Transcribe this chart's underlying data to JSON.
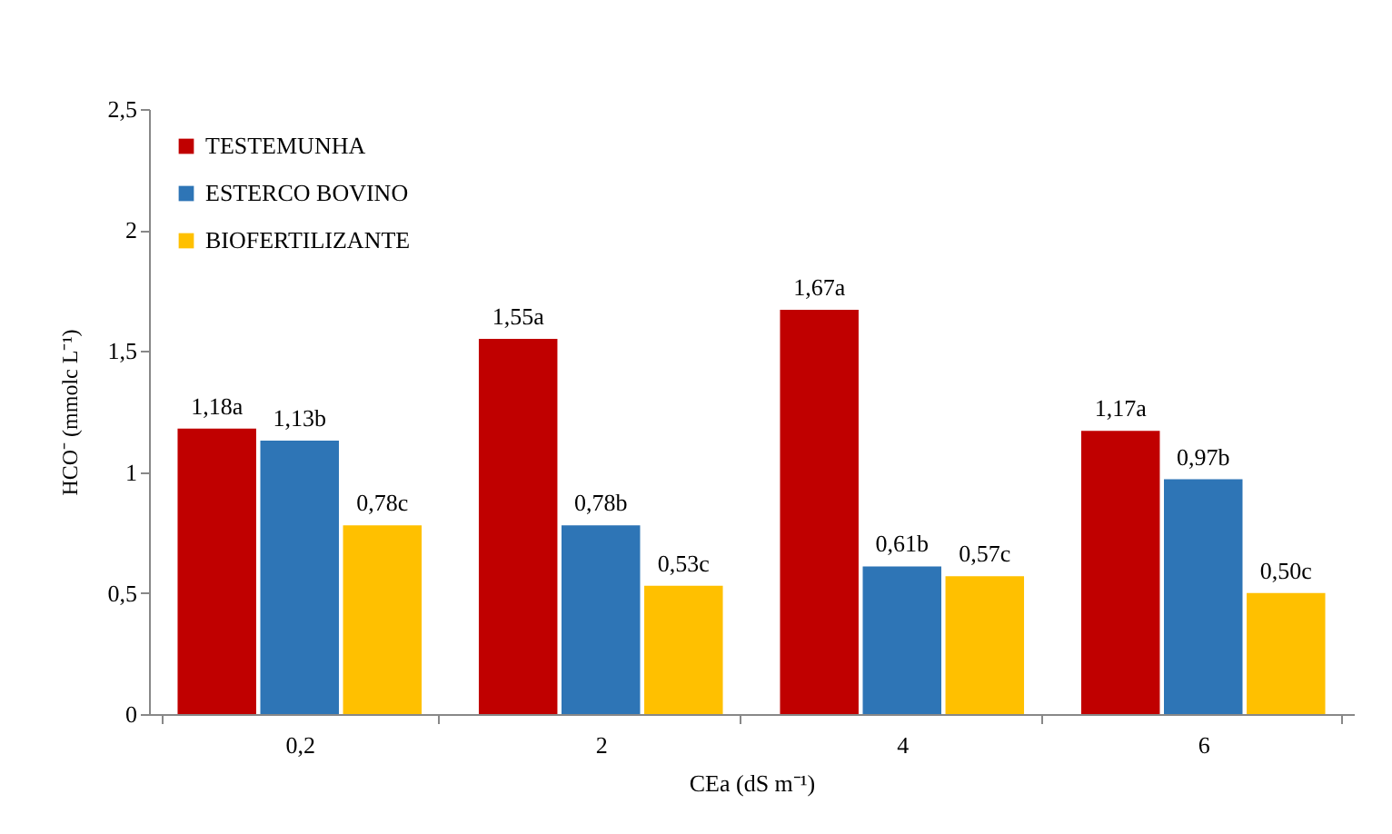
{
  "chart_data": {
    "type": "bar",
    "xlabel": "CEa (dS m⁻¹)",
    "ylabel": "HCO⁻ (mmolc L⁻¹)",
    "categories": [
      "0,2",
      "2",
      "4",
      "6"
    ],
    "series": [
      {
        "name": "TESTEMUNHA",
        "color": "#c00000",
        "values": [
          1.18,
          1.55,
          1.67,
          1.17
        ],
        "value_labels": [
          "1,18a",
          "1,55a",
          "1,67a",
          "1,17a"
        ]
      },
      {
        "name": "ESTERCO BOVINO",
        "color": "#2e75b6",
        "values": [
          1.13,
          0.78,
          0.61,
          0.97
        ],
        "value_labels": [
          "1,13b",
          "0,78b",
          "0,61b",
          "0,97b"
        ]
      },
      {
        "name": "BIOFERTILIZANTE",
        "color": "#ffc000",
        "values": [
          0.78,
          0.53,
          0.57,
          0.5
        ],
        "value_labels": [
          "0,78c",
          "0,53c",
          "0,57c",
          "0,50c"
        ]
      }
    ],
    "ylim": [
      0,
      2.5
    ],
    "yticks": [
      {
        "value": 0,
        "label": "0"
      },
      {
        "value": 0.5,
        "label": "0,5"
      },
      {
        "value": 1,
        "label": "1"
      },
      {
        "value": 1.5,
        "label": "1,5"
      },
      {
        "value": 2,
        "label": "2"
      },
      {
        "value": 2.5,
        "label": "2,5"
      }
    ],
    "grid": false,
    "legend": "top left"
  }
}
